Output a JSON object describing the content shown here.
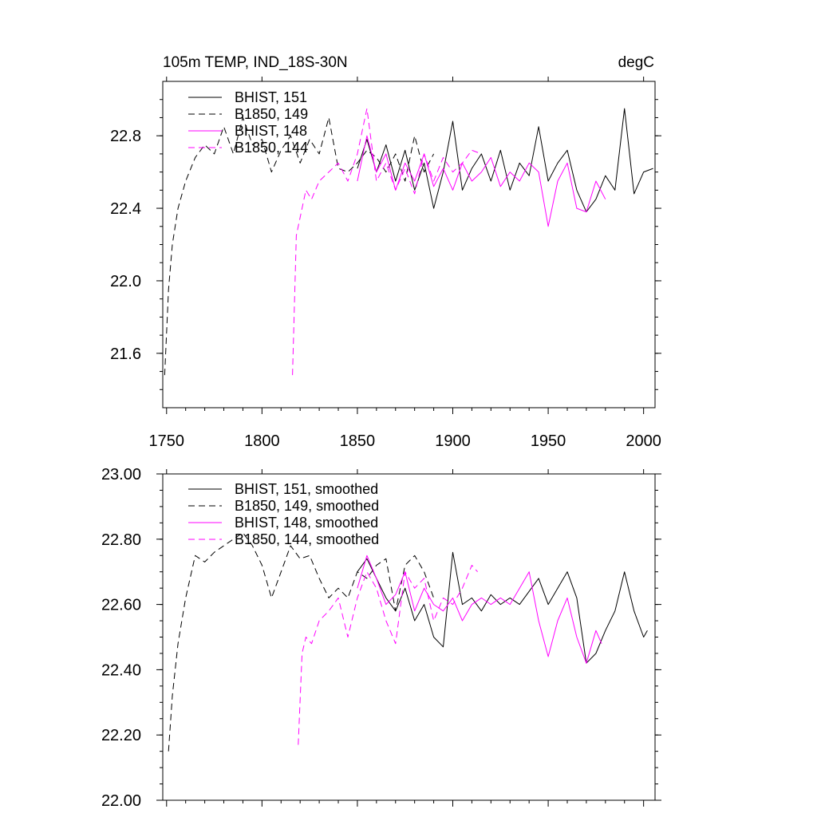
{
  "chart_data": [
    {
      "type": "line",
      "title_left": "105m TEMP, IND_18S-30N",
      "title_right": "degC",
      "xlim": [
        1748,
        2006
      ],
      "ylim": [
        21.3,
        23.1
      ],
      "x_ticks": [
        1750,
        1800,
        1850,
        1900,
        1950,
        2000
      ],
      "x_tick_labels": [
        "1750",
        "1800",
        "1850",
        "1900",
        "1950",
        "2000"
      ],
      "y_ticks": [
        21.6,
        22.0,
        22.4,
        22.8
      ],
      "y_tick_labels": [
        "21.6",
        "22.0",
        "22.4",
        "22.8"
      ],
      "legend": [
        "BHIST, 151",
        "B1850, 149",
        "BHIST, 148",
        "B1850, 144"
      ],
      "series": [
        {
          "name": "BHIST, 151",
          "color": "#000000",
          "dash": "solid",
          "x": [
            1850,
            1855,
            1860,
            1865,
            1870,
            1875,
            1880,
            1885,
            1890,
            1895,
            1900,
            1905,
            1910,
            1915,
            1920,
            1925,
            1930,
            1935,
            1940,
            1945,
            1950,
            1955,
            1960,
            1965,
            1970,
            1975,
            1980,
            1985,
            1990,
            1995,
            2000,
            2005
          ],
          "values": [
            22.62,
            22.78,
            22.6,
            22.75,
            22.55,
            22.72,
            22.5,
            22.65,
            22.4,
            22.6,
            22.88,
            22.5,
            22.62,
            22.7,
            22.55,
            22.72,
            22.5,
            22.65,
            22.58,
            22.85,
            22.55,
            22.65,
            22.72,
            22.5,
            22.38,
            22.45,
            22.58,
            22.5,
            22.95,
            22.48,
            22.6,
            22.62
          ]
        },
        {
          "name": "B1850, 149",
          "color": "#000000",
          "dash": "dashed",
          "x": [
            1749,
            1751,
            1753,
            1756,
            1760,
            1765,
            1770,
            1775,
            1780,
            1785,
            1790,
            1795,
            1800,
            1805,
            1810,
            1815,
            1820,
            1825,
            1830,
            1835,
            1840,
            1845,
            1850,
            1855,
            1860,
            1865,
            1870,
            1875,
            1880,
            1885,
            1890
          ],
          "values": [
            21.48,
            21.95,
            22.2,
            22.4,
            22.55,
            22.68,
            22.75,
            22.7,
            22.85,
            22.7,
            22.9,
            22.75,
            22.78,
            22.6,
            22.72,
            22.8,
            22.65,
            22.78,
            22.7,
            22.9,
            22.62,
            22.6,
            22.65,
            22.72,
            22.68,
            22.6,
            22.7,
            22.55,
            22.8,
            22.6,
            22.7
          ]
        },
        {
          "name": "BHIST, 148",
          "color": "#ff00ff",
          "dash": "solid",
          "x": [
            1850,
            1855,
            1860,
            1865,
            1870,
            1875,
            1880,
            1885,
            1890,
            1895,
            1900,
            1905,
            1910,
            1915,
            1920,
            1925,
            1930,
            1935,
            1940,
            1945,
            1950,
            1955,
            1960,
            1965,
            1970,
            1975,
            1980
          ],
          "values": [
            22.55,
            22.8,
            22.6,
            22.7,
            22.5,
            22.65,
            22.55,
            22.7,
            22.52,
            22.62,
            22.5,
            22.65,
            22.55,
            22.6,
            22.68,
            22.52,
            22.6,
            22.55,
            22.65,
            22.6,
            22.3,
            22.55,
            22.65,
            22.4,
            22.38,
            22.55,
            22.45
          ]
        },
        {
          "name": "B1850, 144",
          "color": "#ff00ff",
          "dash": "dashed",
          "x": [
            1816,
            1818,
            1820,
            1823,
            1826,
            1830,
            1835,
            1840,
            1845,
            1850,
            1855,
            1860,
            1865,
            1870,
            1875,
            1880,
            1885,
            1890,
            1895,
            1900,
            1905,
            1910,
            1915
          ],
          "values": [
            21.48,
            22.25,
            22.35,
            22.5,
            22.45,
            22.55,
            22.6,
            22.65,
            22.55,
            22.7,
            22.95,
            22.55,
            22.65,
            22.5,
            22.62,
            22.48,
            22.7,
            22.55,
            22.68,
            22.6,
            22.65,
            22.72,
            22.7
          ]
        }
      ]
    },
    {
      "type": "line",
      "xlim": [
        1748,
        2006
      ],
      "ylim": [
        22.0,
        23.0
      ],
      "y_ticks": [
        22.0,
        22.2,
        22.4,
        22.6,
        22.8,
        23.0
      ],
      "y_tick_labels": [
        "22.00",
        "22.20",
        "22.40",
        "22.60",
        "22.80",
        "23.00"
      ],
      "legend": [
        "BHIST, 151, smoothed",
        "B1850, 149, smoothed",
        "BHIST, 148, smoothed",
        "B1850, 144, smoothed"
      ],
      "series": [
        {
          "name": "BHIST, 151, smoothed",
          "color": "#000000",
          "dash": "solid",
          "x": [
            1850,
            1855,
            1860,
            1865,
            1870,
            1875,
            1880,
            1885,
            1890,
            1895,
            1900,
            1905,
            1910,
            1915,
            1920,
            1925,
            1930,
            1935,
            1940,
            1945,
            1950,
            1955,
            1960,
            1965,
            1970,
            1975,
            1980,
            1985,
            1990,
            1995,
            2000,
            2002
          ],
          "values": [
            22.7,
            22.74,
            22.68,
            22.62,
            22.58,
            22.65,
            22.55,
            22.6,
            22.5,
            22.47,
            22.76,
            22.6,
            22.62,
            22.58,
            22.63,
            22.6,
            22.62,
            22.6,
            22.64,
            22.68,
            22.6,
            22.65,
            22.7,
            22.62,
            22.42,
            22.45,
            22.52,
            22.58,
            22.7,
            22.58,
            22.5,
            22.52
          ]
        },
        {
          "name": "B1850, 149, smoothed",
          "color": "#000000",
          "dash": "dashed",
          "x": [
            1751,
            1753,
            1756,
            1760,
            1765,
            1770,
            1775,
            1780,
            1785,
            1790,
            1795,
            1800,
            1805,
            1810,
            1815,
            1820,
            1825,
            1830,
            1835,
            1840,
            1845,
            1850,
            1855,
            1860,
            1865,
            1870,
            1875,
            1880,
            1885,
            1890
          ],
          "values": [
            22.15,
            22.32,
            22.48,
            22.62,
            22.75,
            22.73,
            22.76,
            22.78,
            22.8,
            22.82,
            22.78,
            22.72,
            22.62,
            22.7,
            22.78,
            22.74,
            22.75,
            22.68,
            22.62,
            22.65,
            22.62,
            22.7,
            22.68,
            22.72,
            22.74,
            22.58,
            22.72,
            22.75,
            22.7,
            22.62
          ]
        },
        {
          "name": "BHIST, 148, smoothed",
          "color": "#ff00ff",
          "dash": "solid",
          "x": [
            1850,
            1855,
            1860,
            1865,
            1870,
            1875,
            1880,
            1885,
            1890,
            1895,
            1900,
            1905,
            1910,
            1915,
            1920,
            1925,
            1930,
            1935,
            1940,
            1945,
            1950,
            1955,
            1960,
            1965,
            1970,
            1975,
            1978
          ],
          "values": [
            22.65,
            22.75,
            22.68,
            22.6,
            22.63,
            22.7,
            22.58,
            22.65,
            22.6,
            22.58,
            22.62,
            22.55,
            22.6,
            22.62,
            22.6,
            22.62,
            22.6,
            22.65,
            22.7,
            22.55,
            22.44,
            22.55,
            22.62,
            22.5,
            22.42,
            22.52,
            22.48
          ]
        },
        {
          "name": "B1850, 144, smoothed",
          "color": "#ff00ff",
          "dash": "dashed",
          "x": [
            1819,
            1821,
            1823,
            1826,
            1830,
            1835,
            1840,
            1845,
            1850,
            1855,
            1860,
            1865,
            1870,
            1875,
            1880,
            1885,
            1890,
            1895,
            1900,
            1905,
            1910,
            1913
          ],
          "values": [
            22.17,
            22.45,
            22.5,
            22.48,
            22.55,
            22.58,
            22.62,
            22.5,
            22.62,
            22.7,
            22.65,
            22.55,
            22.48,
            22.7,
            22.65,
            22.68,
            22.55,
            22.62,
            22.6,
            22.65,
            22.72,
            22.7
          ]
        }
      ]
    }
  ]
}
